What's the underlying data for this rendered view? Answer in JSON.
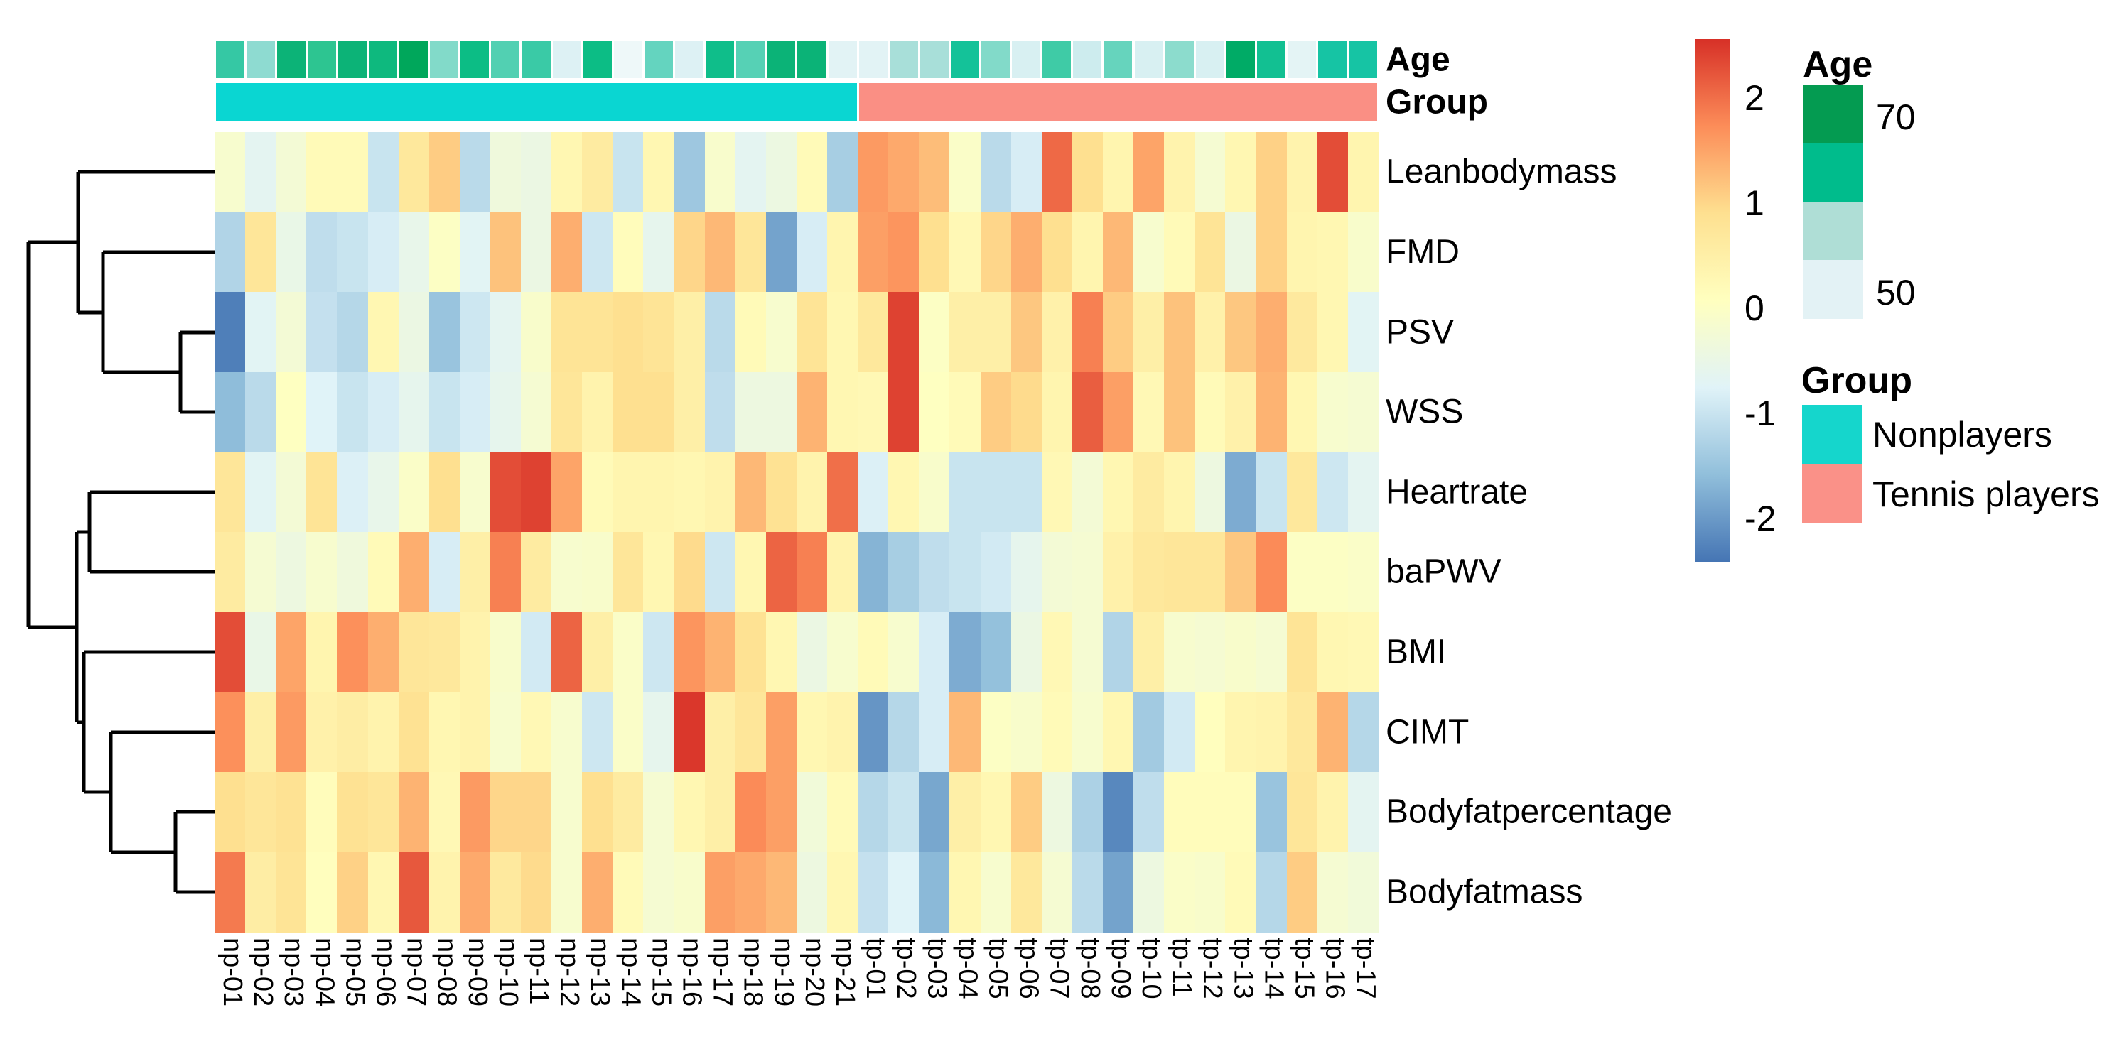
{
  "chart_data": {
    "type": "heatmap",
    "title": "",
    "columns": [
      "np-01",
      "np-02",
      "np-03",
      "np-04",
      "np-05",
      "np-06",
      "np-07",
      "np-08",
      "np-09",
      "np-10",
      "np-11",
      "np-12",
      "np-13",
      "np-14",
      "np-15",
      "np-16",
      "np-17",
      "np-18",
      "np-19",
      "np-20",
      "np-21",
      "tp-01",
      "tp-02",
      "tp-03",
      "tp-04",
      "tp-05",
      "tp-06",
      "tp-07",
      "tp-08",
      "tp-09",
      "tp-10",
      "tp-11",
      "tp-12",
      "tp-13",
      "tp-14",
      "tp-15",
      "tp-16",
      "tp-17"
    ],
    "rows": [
      "Leanbodymass",
      "FMD",
      "PSV",
      "WSS",
      "Heartrate",
      "baPWV",
      "BMI",
      "CIMT",
      "Bodyfatpercentage",
      "Bodyfatmass"
    ],
    "values": [
      [
        -0.15,
        -0.65,
        -0.25,
        0.2,
        0.2,
        -1.0,
        0.7,
        1.1,
        -1.15,
        -0.35,
        -0.45,
        0.3,
        0.6,
        -1.0,
        0.3,
        -1.45,
        -0.12,
        -0.65,
        -0.42,
        0.2,
        -1.35,
        1.6,
        1.45,
        1.25,
        -0.05,
        -1.15,
        -0.85,
        2.05,
        0.9,
        0.35,
        1.5,
        0.4,
        -0.2,
        0.3,
        1.05,
        0.4,
        2.3,
        0.35
      ],
      [
        -1.25,
        0.75,
        -0.5,
        -1.1,
        -1.0,
        -0.85,
        -0.55,
        0.0,
        -0.7,
        1.2,
        -0.45,
        1.4,
        -0.95,
        0.15,
        -0.6,
        1.0,
        1.3,
        0.75,
        -1.9,
        -0.85,
        0.35,
        1.55,
        1.65,
        0.9,
        0.25,
        1.0,
        1.4,
        0.9,
        0.35,
        1.3,
        -0.15,
        0.2,
        0.8,
        -0.45,
        1.05,
        0.35,
        0.3,
        -0.1
      ],
      [
        -2.3,
        -0.7,
        -0.25,
        -1.05,
        -1.2,
        0.3,
        -0.45,
        -1.5,
        -0.95,
        -0.65,
        -0.1,
        0.8,
        0.8,
        0.9,
        0.8,
        0.5,
        -1.15,
        0.2,
        -0.15,
        0.8,
        0.3,
        0.7,
        2.4,
        0.0,
        0.5,
        0.5,
        1.15,
        0.45,
        1.85,
        1.1,
        0.5,
        1.2,
        0.45,
        1.15,
        1.4,
        0.65,
        0.3,
        -0.7
      ],
      [
        -1.6,
        -1.15,
        0.05,
        -0.75,
        -1.0,
        -0.85,
        -0.6,
        -1.0,
        -0.85,
        -0.6,
        -0.2,
        0.75,
        0.4,
        0.9,
        0.9,
        0.5,
        -1.1,
        -0.4,
        -0.4,
        1.35,
        0.3,
        0.25,
        2.4,
        0.05,
        0.2,
        1.1,
        0.95,
        0.35,
        2.15,
        1.55,
        0.25,
        1.2,
        0.2,
        0.45,
        1.35,
        0.3,
        -0.15,
        -0.2
      ],
      [
        0.75,
        -0.7,
        -0.25,
        0.8,
        -0.8,
        -0.55,
        -0.05,
        0.9,
        -0.15,
        2.3,
        2.4,
        1.5,
        0.2,
        0.35,
        0.35,
        0.3,
        0.4,
        1.3,
        0.85,
        0.4,
        2.0,
        -0.8,
        0.3,
        -0.1,
        -1.0,
        -1.0,
        -1.0,
        0.25,
        -0.25,
        0.3,
        0.6,
        0.35,
        -0.4,
        -1.8,
        -1.0,
        0.7,
        -0.95,
        -0.65
      ],
      [
        0.6,
        -0.2,
        -0.4,
        -0.15,
        -0.35,
        0.2,
        1.4,
        -0.85,
        0.5,
        1.85,
        0.6,
        -0.15,
        -0.1,
        0.75,
        0.3,
        0.95,
        -0.95,
        0.3,
        2.1,
        1.85,
        0.4,
        -1.7,
        -1.35,
        -1.1,
        -1.0,
        -0.9,
        -0.6,
        -0.25,
        -0.2,
        0.45,
        0.7,
        0.75,
        0.75,
        1.15,
        1.75,
        0.0,
        0.0,
        -0.05
      ],
      [
        2.3,
        -0.5,
        1.5,
        0.35,
        1.7,
        1.4,
        0.75,
        0.7,
        0.4,
        -0.1,
        -0.9,
        2.1,
        0.5,
        -0.05,
        -0.95,
        1.65,
        1.35,
        0.85,
        0.3,
        -0.45,
        -0.15,
        0.2,
        -0.15,
        -0.85,
        -1.8,
        -1.55,
        -0.45,
        0.25,
        -0.2,
        -1.25,
        0.5,
        -0.15,
        -0.2,
        -0.1,
        -0.2,
        0.8,
        0.3,
        0.25
      ],
      [
        1.7,
        0.5,
        1.6,
        0.45,
        0.55,
        0.4,
        0.85,
        0.3,
        0.4,
        -0.15,
        0.25,
        -0.15,
        -0.95,
        -0.05,
        -0.6,
        2.5,
        0.5,
        0.75,
        1.55,
        0.3,
        0.4,
        -2.05,
        -1.2,
        -0.85,
        1.3,
        0.0,
        -0.1,
        0.2,
        -0.15,
        0.3,
        -1.4,
        -0.9,
        0.1,
        0.35,
        0.4,
        0.7,
        1.35,
        -1.2
      ],
      [
        0.9,
        0.75,
        0.85,
        0.15,
        0.85,
        0.75,
        1.35,
        0.25,
        1.6,
        1.0,
        1.0,
        -0.15,
        0.9,
        0.6,
        -0.2,
        0.3,
        0.5,
        1.75,
        1.55,
        -0.3,
        0.2,
        -1.2,
        -1.0,
        -1.85,
        0.5,
        0.3,
        1.1,
        -0.4,
        -1.3,
        -2.2,
        -1.1,
        0.15,
        0.15,
        0.15,
        -1.5,
        0.75,
        0.4,
        -0.65
      ],
      [
        1.9,
        0.55,
        0.8,
        0.1,
        1.05,
        0.3,
        2.2,
        0.4,
        1.45,
        0.65,
        0.95,
        -0.15,
        1.4,
        0.2,
        -0.2,
        -0.1,
        1.55,
        1.45,
        1.3,
        -0.4,
        0.3,
        -1.05,
        -0.75,
        -1.65,
        0.3,
        -0.15,
        0.7,
        -0.2,
        -1.15,
        -1.9,
        -0.4,
        -0.05,
        -0.1,
        0.2,
        -1.2,
        1.1,
        -0.2,
        -0.3
      ]
    ],
    "value_domain": [
      -2.41,
      2.56
    ],
    "colormap": [
      "#4575B4",
      "#91BFDB",
      "#E0F3F8",
      "#FFFFBF",
      "#FEE090",
      "#FC8D59",
      "#D73027"
    ],
    "colorbar_ticks": [
      2,
      1,
      0,
      -1,
      -2
    ],
    "column_annotations": {
      "Age": {
        "label": "Age",
        "colors_by_column": [
          "#35c8a4",
          "#8edbd1",
          "#0cb377",
          "#2dc591",
          "#0cb377",
          "#0eb97e",
          "#00a75b",
          "#82dac9",
          "#0cbd85",
          "#52d0b2",
          "#3acaa6",
          "#ddf1f4",
          "#0cbd85",
          "#eef8f9",
          "#64d4bf",
          "#ddf1f4",
          "#0fbe8a",
          "#56d1b5",
          "#0bb377",
          "#0bb377",
          "#e2f3f5",
          "#e2f3f5",
          "#a8dfd9",
          "#a8dfd9",
          "#14c299",
          "#82dac9",
          "#d8f0f2",
          "#3fcba6",
          "#cdecee",
          "#66d4bd",
          "#d8f0f2",
          "#8cdccd",
          "#d8f0f2",
          "#00ab66",
          "#12c092",
          "#e4f4f5",
          "#16c4a4",
          "#16c4a4"
        ]
      },
      "Group": {
        "label": "Group",
        "groups": [
          {
            "name": "Nonplayers",
            "n_columns": 21,
            "color": "#0AD6D2"
          },
          {
            "name": "Tennis players",
            "n_columns": 17,
            "color": "#FA8F84"
          }
        ]
      }
    },
    "row_dendrogram": {
      "segments": [
        [
          40,
          341,
          110,
          341
        ],
        [
          40,
          341,
          40,
          883
        ],
        [
          40,
          883,
          108,
          883
        ],
        [
          110,
          242,
          302,
          242
        ],
        [
          110,
          242,
          110,
          440
        ],
        [
          110,
          440,
          145,
          440
        ],
        [
          145,
          355,
          302,
          355
        ],
        [
          145,
          355,
          145,
          524
        ],
        [
          145,
          524,
          254,
          524
        ],
        [
          254,
          468,
          302,
          468
        ],
        [
          254,
          468,
          254,
          580
        ],
        [
          254,
          580,
          302,
          580
        ],
        [
          108,
          749,
          126,
          749
        ],
        [
          108,
          749,
          108,
          1017
        ],
        [
          108,
          1017,
          118,
          1017
        ],
        [
          126,
          693,
          302,
          693
        ],
        [
          126,
          693,
          126,
          805
        ],
        [
          126,
          805,
          302,
          805
        ],
        [
          118,
          918,
          302,
          918
        ],
        [
          118,
          918,
          118,
          1115
        ],
        [
          118,
          1115,
          156,
          1115
        ],
        [
          156,
          1031,
          302,
          1031
        ],
        [
          156,
          1031,
          156,
          1200
        ],
        [
          156,
          1200,
          247,
          1200
        ],
        [
          247,
          1143,
          302,
          1143
        ],
        [
          247,
          1143,
          247,
          1256
        ],
        [
          247,
          1256,
          302,
          1256
        ]
      ]
    }
  },
  "legends": {
    "age": {
      "title": "Age",
      "max_label": "70",
      "min_label": "50",
      "swatches": [
        "#049B51",
        "#00BC8C",
        "#AFDED6",
        "#E3F2F5"
      ]
    },
    "group": {
      "title": "Group",
      "items": [
        {
          "label": "Nonplayers",
          "color": "#15D6CC"
        },
        {
          "label": "Tennis players",
          "color": "#FA9188"
        }
      ]
    }
  }
}
